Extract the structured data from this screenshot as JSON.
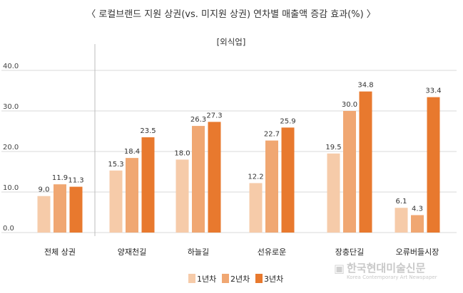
{
  "chart_data": {
    "type": "bar",
    "title": "〈 로컬브랜드 지원 상권(vs. 미지원 상권) 연차별 매출액 증감 효과(%) 〉",
    "subtitle": "[외식업]",
    "categories": [
      "전체 상권",
      "양재천길",
      "하늘길",
      "선유로운",
      "장충단길",
      "오류버들시장"
    ],
    "series": [
      {
        "name": "1년차",
        "color": "#f6cba9",
        "values": [
          9.0,
          15.3,
          18.0,
          12.2,
          19.5,
          6.1
        ]
      },
      {
        "name": "2년차",
        "color": "#f0a772",
        "values": [
          11.9,
          18.4,
          26.3,
          22.7,
          30.0,
          4.3
        ]
      },
      {
        "name": "3년차",
        "color": "#e8792e",
        "values": [
          11.3,
          23.5,
          27.3,
          25.9,
          34.8,
          33.4
        ]
      }
    ],
    "yticks": [
      "0.0",
      "10.0",
      "20.0",
      "30.0",
      "40.0"
    ],
    "ylim": [
      0,
      40
    ],
    "grid": true,
    "legend_position": "bottom-center"
  },
  "watermark": {
    "name": "한국현대미술신문",
    "sub": "Korea Contemporary Art Newspaper"
  }
}
